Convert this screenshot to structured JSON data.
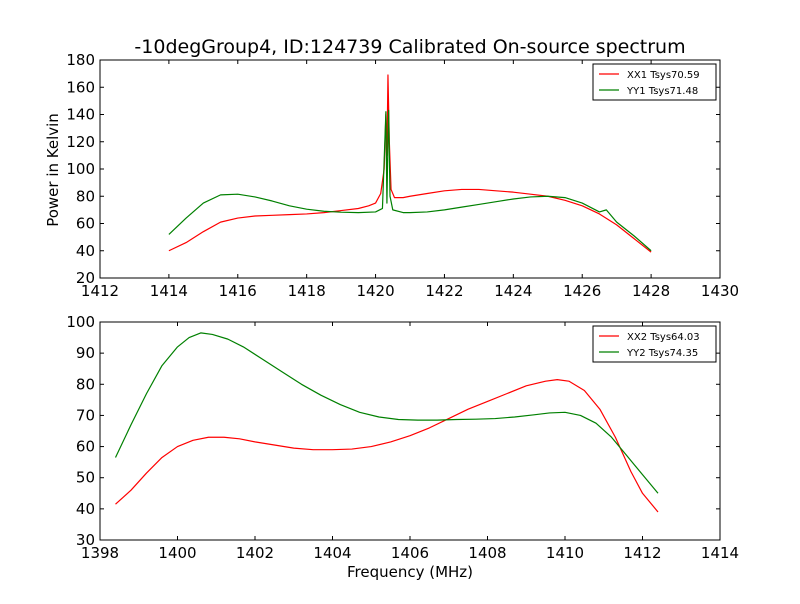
{
  "figure": {
    "title": "-10degGroup4, ID:124739 Calibrated On-source spectrum",
    "ylabel": "Power in Kelvin",
    "xlabel": "Frequency (MHz)"
  },
  "chart_data": [
    {
      "type": "line",
      "title": "-10degGroup4, ID:124739 Calibrated On-source spectrum",
      "ylabel": "Power in Kelvin",
      "xlabel": "",
      "xlim": [
        1412,
        1430
      ],
      "ylim": [
        20,
        180
      ],
      "xticks": [
        1412,
        1414,
        1416,
        1418,
        1420,
        1422,
        1424,
        1426,
        1428,
        1430
      ],
      "yticks": [
        20,
        40,
        60,
        80,
        100,
        120,
        140,
        160,
        180
      ],
      "grid": false,
      "legend": "top-right",
      "series": [
        {
          "name": "XX1 Tsys70.59",
          "color": "#ff0000",
          "points": [
            [
              1414.0,
              40
            ],
            [
              1414.5,
              46
            ],
            [
              1415.0,
              54
            ],
            [
              1415.5,
              61
            ],
            [
              1416.0,
              64
            ],
            [
              1416.5,
              65.5
            ],
            [
              1417.0,
              66
            ],
            [
              1417.5,
              66.5
            ],
            [
              1418.0,
              67
            ],
            [
              1418.5,
              68
            ],
            [
              1419.0,
              69.5
            ],
            [
              1419.5,
              71
            ],
            [
              1419.8,
              73
            ],
            [
              1420.0,
              75
            ],
            [
              1420.15,
              82
            ],
            [
              1420.25,
              100
            ],
            [
              1420.3,
              140
            ],
            [
              1420.33,
              110
            ],
            [
              1420.36,
              169
            ],
            [
              1420.4,
              120
            ],
            [
              1420.45,
              85
            ],
            [
              1420.55,
              79
            ],
            [
              1420.8,
              79
            ],
            [
              1421.0,
              80
            ],
            [
              1421.5,
              82
            ],
            [
              1422.0,
              84
            ],
            [
              1422.5,
              85
            ],
            [
              1423.0,
              85
            ],
            [
              1423.5,
              84
            ],
            [
              1424.0,
              83
            ],
            [
              1424.5,
              81.5
            ],
            [
              1425.0,
              80
            ],
            [
              1425.5,
              77
            ],
            [
              1426.0,
              73
            ],
            [
              1426.5,
              67
            ],
            [
              1427.0,
              59
            ],
            [
              1427.5,
              49
            ],
            [
              1428.0,
              39
            ]
          ]
        },
        {
          "name": "YY1 Tsys71.48",
          "color": "#008000",
          "points": [
            [
              1414.0,
              52
            ],
            [
              1414.5,
              64
            ],
            [
              1415.0,
              75
            ],
            [
              1415.5,
              81
            ],
            [
              1416.0,
              81.5
            ],
            [
              1416.5,
              79.5
            ],
            [
              1417.0,
              76.5
            ],
            [
              1417.5,
              73
            ],
            [
              1418.0,
              70.5
            ],
            [
              1418.5,
              69
            ],
            [
              1419.0,
              68.3
            ],
            [
              1419.5,
              68
            ],
            [
              1420.0,
              68.5
            ],
            [
              1420.2,
              71
            ],
            [
              1420.3,
              142
            ],
            [
              1420.33,
              75
            ],
            [
              1420.36,
              122
            ],
            [
              1420.38,
              143
            ],
            [
              1420.42,
              80
            ],
            [
              1420.5,
              70
            ],
            [
              1420.8,
              68
            ],
            [
              1421.0,
              68
            ],
            [
              1421.5,
              68.5
            ],
            [
              1422.0,
              70
            ],
            [
              1422.5,
              72
            ],
            [
              1423.0,
              74
            ],
            [
              1423.5,
              76
            ],
            [
              1424.0,
              78
            ],
            [
              1424.5,
              79.5
            ],
            [
              1425.0,
              80
            ],
            [
              1425.5,
              79
            ],
            [
              1426.0,
              75
            ],
            [
              1426.5,
              68.5
            ],
            [
              1426.7,
              70
            ],
            [
              1427.0,
              61
            ],
            [
              1427.5,
              51
            ],
            [
              1428.0,
              40
            ]
          ]
        }
      ]
    },
    {
      "type": "line",
      "title": "",
      "xlabel": "Frequency (MHz)",
      "ylabel": "",
      "xlim": [
        1398,
        1414
      ],
      "ylim": [
        30,
        100
      ],
      "xticks": [
        1398,
        1400,
        1402,
        1404,
        1406,
        1408,
        1410,
        1412,
        1414
      ],
      "yticks": [
        30,
        40,
        50,
        60,
        70,
        80,
        90,
        100
      ],
      "grid": false,
      "legend": "top-right",
      "series": [
        {
          "name": "XX2 Tsys64.03",
          "color": "#ff0000",
          "points": [
            [
              1398.4,
              41.5
            ],
            [
              1398.8,
              46
            ],
            [
              1399.2,
              51.5
            ],
            [
              1399.6,
              56.5
            ],
            [
              1400.0,
              60
            ],
            [
              1400.4,
              62
            ],
            [
              1400.8,
              63
            ],
            [
              1401.2,
              63
            ],
            [
              1401.6,
              62.5
            ],
            [
              1402.0,
              61.5
            ],
            [
              1402.5,
              60.5
            ],
            [
              1403.0,
              59.5
            ],
            [
              1403.5,
              59
            ],
            [
              1404.0,
              59
            ],
            [
              1404.5,
              59.2
            ],
            [
              1405.0,
              60
            ],
            [
              1405.5,
              61.5
            ],
            [
              1406.0,
              63.5
            ],
            [
              1406.5,
              66
            ],
            [
              1407.0,
              69
            ],
            [
              1407.5,
              72
            ],
            [
              1408.0,
              74.5
            ],
            [
              1408.5,
              77
            ],
            [
              1409.0,
              79.5
            ],
            [
              1409.5,
              81
            ],
            [
              1409.8,
              81.5
            ],
            [
              1410.1,
              81
            ],
            [
              1410.5,
              78
            ],
            [
              1410.9,
              72
            ],
            [
              1411.3,
              63
            ],
            [
              1411.7,
              52
            ],
            [
              1412.0,
              45
            ],
            [
              1412.4,
              39
            ]
          ]
        },
        {
          "name": "YY2 Tsys74.35",
          "color": "#008000",
          "points": [
            [
              1398.4,
              56.5
            ],
            [
              1398.8,
              67
            ],
            [
              1399.2,
              77
            ],
            [
              1399.6,
              86
            ],
            [
              1400.0,
              92
            ],
            [
              1400.3,
              95
            ],
            [
              1400.6,
              96.5
            ],
            [
              1400.9,
              96
            ],
            [
              1401.3,
              94.5
            ],
            [
              1401.7,
              92
            ],
            [
              1402.2,
              88
            ],
            [
              1402.7,
              84
            ],
            [
              1403.2,
              80
            ],
            [
              1403.7,
              76.5
            ],
            [
              1404.2,
              73.5
            ],
            [
              1404.7,
              71
            ],
            [
              1405.2,
              69.5
            ],
            [
              1405.7,
              68.7
            ],
            [
              1406.2,
              68.5
            ],
            [
              1406.7,
              68.5
            ],
            [
              1407.2,
              68.7
            ],
            [
              1407.7,
              68.8
            ],
            [
              1408.2,
              69
            ],
            [
              1408.7,
              69.5
            ],
            [
              1409.2,
              70.2
            ],
            [
              1409.6,
              70.8
            ],
            [
              1410.0,
              71
            ],
            [
              1410.4,
              70
            ],
            [
              1410.8,
              67.5
            ],
            [
              1411.2,
              63
            ],
            [
              1411.6,
              57
            ],
            [
              1412.0,
              51
            ],
            [
              1412.4,
              45
            ]
          ]
        }
      ]
    }
  ]
}
